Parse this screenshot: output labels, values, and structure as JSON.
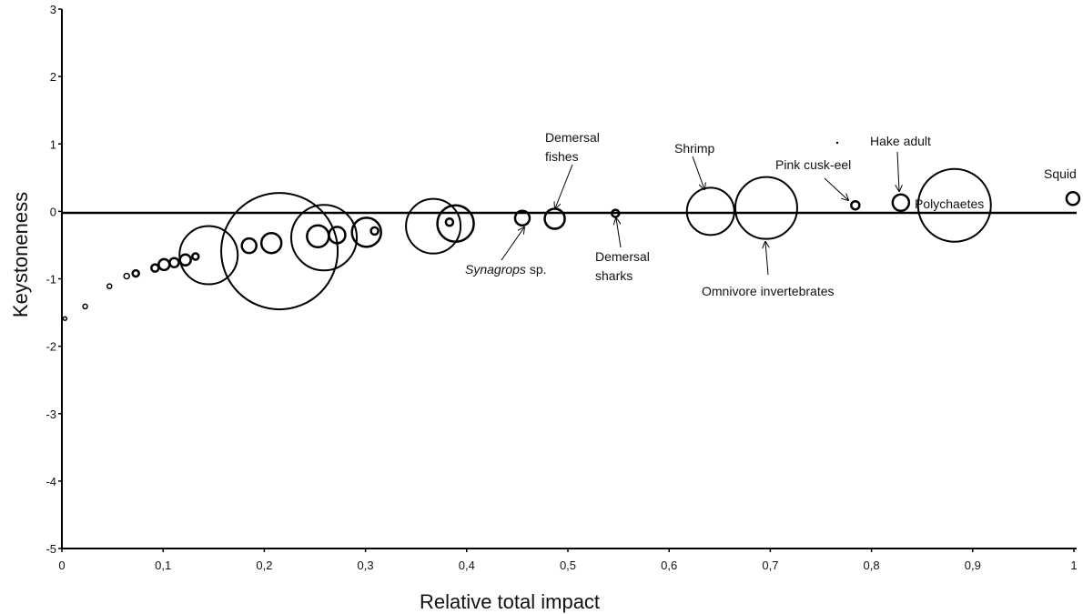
{
  "chart_data": {
    "type": "scatter",
    "subtype": "bubble",
    "title": "",
    "xlabel": "Relative total impact",
    "ylabel": "Keystoneness",
    "xlim": [
      0,
      1
    ],
    "ylim": [
      -5,
      3
    ],
    "x_ticks": [
      "0",
      "0,1",
      "0,2",
      "0,3",
      "0,4",
      "0,5",
      "0,6",
      "0,7",
      "0,8",
      "0,9",
      "1"
    ],
    "y_ticks": [
      "3",
      "2",
      "1",
      "0",
      "-1",
      "-2",
      "-3",
      "-4",
      "-5"
    ],
    "grid": false,
    "legend": "none",
    "zero_line": true,
    "points": [
      {
        "x": 0.003,
        "y": -1.59,
        "size": 2
      },
      {
        "x": 0.023,
        "y": -1.41,
        "size": 2.5
      },
      {
        "x": 0.047,
        "y": -1.11,
        "size": 2.5
      },
      {
        "x": 0.064,
        "y": -0.96,
        "size": 3
      },
      {
        "x": 0.073,
        "y": -0.92,
        "size": 3.5
      },
      {
        "x": 0.092,
        "y": -0.84,
        "size": 4
      },
      {
        "x": 0.101,
        "y": -0.79,
        "size": 6
      },
      {
        "x": 0.111,
        "y": -0.76,
        "size": 5
      },
      {
        "x": 0.122,
        "y": -0.72,
        "size": 6
      },
      {
        "x": 0.132,
        "y": -0.67,
        "size": 3.5
      },
      {
        "x": 0.145,
        "y": -0.65,
        "size": 32
      },
      {
        "x": 0.185,
        "y": -0.51,
        "size": 8
      },
      {
        "x": 0.207,
        "y": -0.47,
        "size": 11
      },
      {
        "x": 0.215,
        "y": -0.59,
        "size": 64
      },
      {
        "x": 0.259,
        "y": -0.39,
        "size": 36
      },
      {
        "x": 0.253,
        "y": -0.37,
        "size": 12
      },
      {
        "x": 0.272,
        "y": -0.35,
        "size": 9
      },
      {
        "x": 0.301,
        "y": -0.31,
        "size": 16
      },
      {
        "x": 0.309,
        "y": -0.29,
        "size": 4
      },
      {
        "x": 0.367,
        "y": -0.22,
        "size": 30
      },
      {
        "x": 0.389,
        "y": -0.18,
        "size": 20
      },
      {
        "x": 0.383,
        "y": -0.16,
        "size": 4
      },
      {
        "x": 0.455,
        "y": -0.1,
        "size": 8
      },
      {
        "x": 0.487,
        "y": -0.11,
        "size": 11
      },
      {
        "x": 0.547,
        "y": -0.03,
        "size": 4
      },
      {
        "x": 0.641,
        "y": 0.0,
        "size": 26
      },
      {
        "x": 0.696,
        "y": 0.05,
        "size": 34
      },
      {
        "x": 0.784,
        "y": 0.09,
        "size": 4.5
      },
      {
        "x": 0.829,
        "y": 0.13,
        "size": 9
      },
      {
        "x": 0.882,
        "y": 0.09,
        "size": 40
      },
      {
        "x": 0.999,
        "y": 0.19,
        "size": 7
      }
    ],
    "annotations": [
      {
        "lines": [
          "Demersal",
          "fishes"
        ],
        "italic": false
      },
      {
        "lines": [
          "Shrimp"
        ],
        "italic": false
      },
      {
        "lines": [
          "Pink cusk-eel"
        ],
        "italic": false
      },
      {
        "lines": [
          "Hake adult"
        ],
        "italic": false
      },
      {
        "lines": [
          "Squid"
        ],
        "italic": false
      },
      {
        "lines": [
          "Polychaetes"
        ],
        "italic": false
      },
      {
        "lines": [
          "Demersal",
          "sharks"
        ],
        "italic": false
      },
      {
        "lines": [
          "Omnivore invertebrates"
        ],
        "italic": false
      },
      {
        "italic_part": "Synagrops",
        "normal_part": " sp."
      }
    ]
  }
}
